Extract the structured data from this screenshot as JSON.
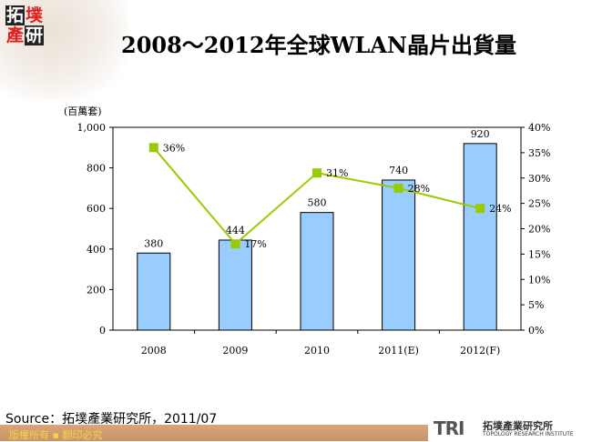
{
  "logo_text": "拓墣產研",
  "title": "2008～2012年全球WLAN晶片出貨量",
  "source": "Source：拓墣產業研究所，2011/07",
  "copyright": "版權所有 ▪ 翻印必究",
  "brand": {
    "short": "TRI",
    "name_zh": "拓墣產業研究所",
    "name_en": "TOPOLOGY RESEARCH INSTITUTE"
  },
  "chart_data": {
    "type": "bar+line",
    "title": "2008～2012年全球WLAN晶片出貨量",
    "ylabel": "(百萬套)",
    "categories": [
      "2008",
      "2009",
      "2010",
      "2011(E)",
      "2012(F)"
    ],
    "bars": {
      "values": [
        380,
        444,
        580,
        740,
        920
      ],
      "labels": [
        "380",
        "444",
        "580",
        "740",
        "920"
      ],
      "color": "#99ccff"
    },
    "line": {
      "values": [
        36,
        17,
        31,
        28,
        24
      ],
      "labels": [
        "36%",
        "17%",
        "31%",
        "28%",
        "24%"
      ],
      "color": "#99cc00",
      "axis": "right"
    },
    "ylim": [
      0,
      1000
    ],
    "yticks": [
      "0",
      "200",
      "400",
      "600",
      "800",
      "1,000"
    ],
    "y2lim": [
      0,
      40
    ],
    "y2ticks": [
      "0%",
      "5%",
      "10%",
      "15%",
      "20%",
      "25%",
      "30%",
      "35%",
      "40%"
    ],
    "grid": false
  }
}
